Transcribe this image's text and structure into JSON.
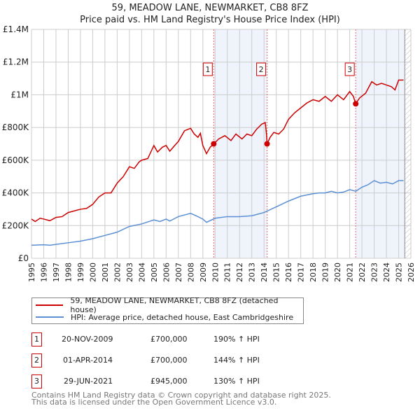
{
  "title": "59, MEADOW LANE, NEWMARKET, CB8 8FZ",
  "subtitle": "Price paid vs. HM Land Registry's House Price Index (HPI)",
  "chart_data": {
    "type": "line",
    "xlim": [
      1995,
      2026
    ],
    "ylim": [
      0,
      1400000
    ],
    "yticks": [
      {
        "v": 0,
        "label": "£0"
      },
      {
        "v": 200000,
        "label": "£200K"
      },
      {
        "v": 400000,
        "label": "£400K"
      },
      {
        "v": 600000,
        "label": "£600K"
      },
      {
        "v": 800000,
        "label": "£800K"
      },
      {
        "v": 1000000,
        "label": "£1M"
      },
      {
        "v": 1200000,
        "label": "£1.2M"
      },
      {
        "v": 1400000,
        "label": "£1.4M"
      }
    ],
    "xticks": [
      "1995",
      "1996",
      "1997",
      "1998",
      "1999",
      "2000",
      "2001",
      "2002",
      "2003",
      "2004",
      "2005",
      "2006",
      "2007",
      "2008",
      "2009",
      "2010",
      "2011",
      "2012",
      "2013",
      "2014",
      "2015",
      "2016",
      "2017",
      "2018",
      "2019",
      "2020",
      "2021",
      "2022",
      "2023",
      "2024",
      "2025",
      "2026"
    ],
    "grid": true,
    "shaded_ranges": [
      [
        2009.89,
        2014.25
      ],
      [
        2021.49,
        2025.5
      ]
    ],
    "hatched_from": 2025.5,
    "series": [
      {
        "name": "59, MEADOW LANE, NEWMARKET, CB8 8FZ (detached house)",
        "color": "#cc0000",
        "x": [
          1995,
          1995.3,
          1995.7,
          1996,
          1996.5,
          1997,
          1997.5,
          1998,
          1998.5,
          1999,
          1999.5,
          2000,
          2000.5,
          2001,
          2001.5,
          2002,
          2002.5,
          2003,
          2003.4,
          2003.8,
          2004,
          2004.5,
          2005,
          2005.3,
          2005.7,
          2006,
          2006.3,
          2006.7,
          2007,
          2007.5,
          2008,
          2008.3,
          2008.6,
          2008.8,
          2009,
          2009.3,
          2009.6,
          2009.89,
          2010.3,
          2010.8,
          2011.3,
          2011.7,
          2012.2,
          2012.6,
          2013,
          2013.4,
          2013.8,
          2014.1,
          2014.2,
          2014.25,
          2014.5,
          2014.8,
          2015.2,
          2015.6,
          2016,
          2016.5,
          2017,
          2017.5,
          2018,
          2018.5,
          2019,
          2019.5,
          2020,
          2020.5,
          2021,
          2021.3,
          2021.49,
          2021.8,
          2022.3,
          2022.8,
          2023.2,
          2023.6,
          2024,
          2024.4,
          2024.7,
          2025,
          2025.4
        ],
        "y": [
          240000,
          225000,
          245000,
          240000,
          230000,
          250000,
          255000,
          280000,
          290000,
          300000,
          305000,
          330000,
          375000,
          400000,
          400000,
          460000,
          500000,
          560000,
          550000,
          590000,
          600000,
          610000,
          690000,
          650000,
          680000,
          690000,
          655000,
          690000,
          715000,
          780000,
          795000,
          760000,
          740000,
          765000,
          690000,
          640000,
          680000,
          700000,
          730000,
          750000,
          720000,
          760000,
          730000,
          760000,
          750000,
          790000,
          820000,
          830000,
          760000,
          700000,
          740000,
          770000,
          760000,
          790000,
          850000,
          890000,
          920000,
          950000,
          970000,
          960000,
          990000,
          960000,
          1000000,
          970000,
          1020000,
          990000,
          945000,
          980000,
          1010000,
          1080000,
          1060000,
          1070000,
          1060000,
          1050000,
          1030000,
          1090000,
          1090000
        ]
      },
      {
        "name": "HPI: Average price, detached house, East Cambridgeshire",
        "color": "#5b8fd4",
        "x": [
          1995,
          1996,
          1996.5,
          1997,
          1998,
          1999,
          2000,
          2001,
          2002,
          2003,
          2004,
          2005,
          2005.5,
          2006,
          2006.3,
          2007,
          2008,
          2008.5,
          2009,
          2009.3,
          2010,
          2011,
          2012,
          2013,
          2014,
          2015,
          2016,
          2017,
          2018,
          2018.5,
          2019,
          2019.5,
          2020,
          2020.5,
          2021,
          2021.5,
          2022,
          2022.5,
          2023,
          2023.5,
          2024,
          2024.5,
          2025,
          2025.4
        ],
        "y": [
          80000,
          83000,
          80000,
          85000,
          95000,
          105000,
          120000,
          140000,
          160000,
          195000,
          210000,
          235000,
          225000,
          240000,
          228000,
          255000,
          275000,
          258000,
          240000,
          220000,
          245000,
          255000,
          255000,
          260000,
          280000,
          315000,
          350000,
          380000,
          395000,
          400000,
          400000,
          410000,
          400000,
          405000,
          420000,
          410000,
          435000,
          450000,
          475000,
          460000,
          465000,
          455000,
          475000,
          475000
        ]
      }
    ],
    "sales": [
      {
        "id": "1",
        "x": 2009.89,
        "y": 700000
      },
      {
        "id": "2",
        "x": 2014.25,
        "y": 700000
      },
      {
        "id": "3",
        "x": 2021.49,
        "y": 945000
      }
    ]
  },
  "legend": {
    "property": "59, MEADOW LANE, NEWMARKET, CB8 8FZ (detached house)",
    "hpi": "HPI: Average price, detached house, East Cambridgeshire"
  },
  "sales_table": [
    {
      "num": "1",
      "date": "20-NOV-2009",
      "price": "£700,000",
      "hpi": "190% ↑ HPI"
    },
    {
      "num": "2",
      "date": "01-APR-2014",
      "price": "£700,000",
      "hpi": "144% ↑ HPI"
    },
    {
      "num": "3",
      "date": "29-JUN-2021",
      "price": "£945,000",
      "hpi": "130% ↑ HPI"
    }
  ],
  "footer": {
    "line1": "Contains HM Land Registry data © Crown copyright and database right 2025.",
    "line2": "This data is licensed under the Open Government Licence v3.0."
  }
}
